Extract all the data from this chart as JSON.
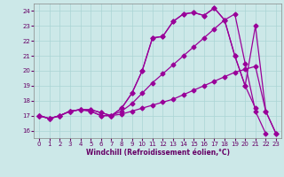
{
  "xlabel": "Windchill (Refroidissement éolien,°C)",
  "bg_color": "#cce8e8",
  "grid_color": "#aad4d4",
  "line_color": "#990099",
  "tick_color": "#660066",
  "xlim": [
    -0.5,
    23.5
  ],
  "ylim": [
    15.5,
    24.5
  ],
  "yticks": [
    16,
    17,
    18,
    19,
    20,
    21,
    22,
    23,
    24
  ],
  "xticks": [
    0,
    1,
    2,
    3,
    4,
    5,
    6,
    7,
    8,
    9,
    10,
    11,
    12,
    13,
    14,
    15,
    16,
    17,
    18,
    19,
    20,
    21,
    22,
    23
  ],
  "s1_x": [
    0,
    1,
    2,
    3,
    4,
    5,
    6,
    7,
    8,
    9,
    10,
    11,
    12,
    13,
    14,
    15,
    16,
    17,
    18,
    19,
    20,
    21
  ],
  "s1_y": [
    17.0,
    16.8,
    17.0,
    17.3,
    17.4,
    17.4,
    17.2,
    17.0,
    17.5,
    18.5,
    20.0,
    22.2,
    22.3,
    23.3,
    23.8,
    23.9,
    23.7,
    24.2,
    23.4,
    21.0,
    19.0,
    17.5
  ],
  "s2_x": [
    0,
    1,
    2,
    3,
    4,
    5,
    6,
    7,
    8,
    9,
    10,
    11,
    12,
    13,
    14,
    15,
    16,
    17,
    18,
    19,
    20,
    21,
    22,
    23
  ],
  "s2_y": [
    17.0,
    16.8,
    17.0,
    17.3,
    17.4,
    17.4,
    17.2,
    17.0,
    17.5,
    18.5,
    20.0,
    22.2,
    22.3,
    23.3,
    23.8,
    23.9,
    23.7,
    24.2,
    23.4,
    21.0,
    19.0,
    23.0,
    17.3,
    15.8
  ],
  "s3_x": [
    0,
    1,
    2,
    3,
    4,
    5,
    6,
    7,
    8,
    9,
    10,
    11,
    12,
    13,
    14,
    15,
    16,
    17,
    18,
    19,
    20,
    21,
    22
  ],
  "s3_y": [
    17.0,
    16.8,
    17.0,
    17.3,
    17.4,
    17.3,
    17.0,
    17.0,
    17.3,
    17.8,
    18.5,
    19.2,
    19.8,
    20.4,
    21.0,
    21.6,
    22.2,
    22.8,
    23.4,
    23.8,
    20.5,
    17.3,
    15.8
  ],
  "s4_x": [
    0,
    1,
    2,
    3,
    4,
    5,
    6,
    7,
    8,
    9,
    10,
    11,
    12,
    13,
    14,
    15,
    16,
    17,
    18,
    19,
    20,
    21,
    22,
    23
  ],
  "s4_y": [
    17.0,
    16.8,
    17.0,
    17.3,
    17.4,
    17.3,
    17.0,
    17.0,
    17.1,
    17.3,
    17.5,
    17.7,
    17.9,
    18.1,
    18.4,
    18.7,
    19.0,
    19.3,
    19.6,
    19.9,
    20.1,
    20.3,
    17.3,
    15.8
  ]
}
